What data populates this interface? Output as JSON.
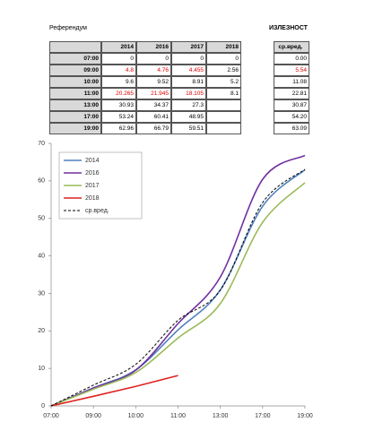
{
  "title": "Референдум",
  "right_title": "ИЗЛЕЗНОСТ",
  "table": {
    "columns": [
      "2014",
      "2016",
      "2017",
      "2018"
    ],
    "rows": [
      {
        "time": "07:00",
        "cells": [
          "0",
          "0",
          "0",
          "0"
        ]
      },
      {
        "time": "09:00",
        "cells": [
          "4.8",
          "4.76",
          "4.455",
          "2.56"
        ]
      },
      {
        "time": "10:00",
        "cells": [
          "9.6",
          "9.52",
          "8.91",
          "5.2"
        ]
      },
      {
        "time": "11:00",
        "cells": [
          "20.265",
          "21.945",
          "18.105",
          "8.1"
        ]
      },
      {
        "time": "13:00",
        "cells": [
          "30.93",
          "34.37",
          "27.3",
          ""
        ]
      },
      {
        "time": "17:00",
        "cells": [
          "53.24",
          "60.41",
          "48.95",
          ""
        ]
      },
      {
        "time": "19:00",
        "cells": [
          "62.96",
          "66.79",
          "59.51",
          ""
        ]
      }
    ]
  },
  "avg_table": {
    "header": "ср.вред.",
    "rows": [
      "0.00",
      "5.54",
      "11.08",
      "22.81",
      "30.87",
      "54.20",
      "63.09"
    ]
  },
  "chart_data": {
    "type": "line",
    "categories": [
      "07:00",
      "09:00",
      "10:00",
      "11:00",
      "13:00",
      "17:00",
      "19:00"
    ],
    "series": [
      {
        "name": "2014",
        "color": "#4f81bd",
        "values": [
          0,
          4.8,
          9.6,
          20.265,
          30.93,
          53.24,
          62.96
        ]
      },
      {
        "name": "2016",
        "color": "#7030a0",
        "values": [
          0,
          4.76,
          9.52,
          21.945,
          34.37,
          60.41,
          66.79
        ]
      },
      {
        "name": "2017",
        "color": "#9bbb59",
        "values": [
          0,
          4.455,
          8.91,
          18.105,
          27.3,
          48.95,
          59.51
        ]
      },
      {
        "name": "2018",
        "color": "#e02020",
        "values": [
          0,
          2.56,
          5.2,
          8.1,
          null,
          null,
          null
        ]
      },
      {
        "name": "ср.вред.",
        "color": "#000000",
        "dashed": true,
        "values": [
          0,
          5.54,
          11.08,
          22.81,
          30.87,
          54.2,
          63.09
        ]
      }
    ],
    "ylim": [
      0,
      70
    ],
    "yticks": [
      0,
      10,
      20,
      30,
      40,
      50,
      60,
      70
    ],
    "grid": false,
    "legend": "upper left"
  }
}
